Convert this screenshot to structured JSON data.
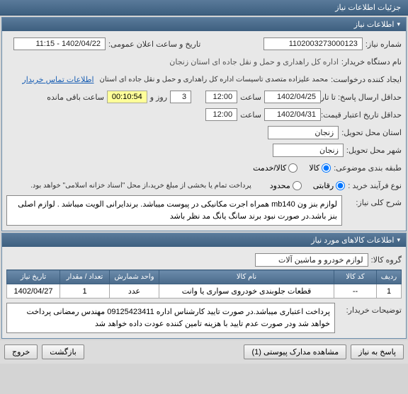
{
  "tabs": {
    "details": "جزئیات اطلاعات نیاز"
  },
  "section1": {
    "title": "اطلاعات نیاز",
    "need_no_label": "شماره نیاز:",
    "need_no": "1102003273000123",
    "pub_date_label": "تاریخ و ساعت اعلان عمومی:",
    "pub_date": "1402/04/22 - 11:15",
    "buyer_label": "نام دستگاه خریدار:",
    "buyer": "اداره کل راهداری و حمل و نقل جاده ای استان زنجان",
    "requester_label": "ایجاد کننده درخواست:",
    "requester": "محمد علیزاده متصدی تاسیسات اداره کل راهداری و حمل و نقل جاده ای استان",
    "contact_link": "اطلاعات تماس خریدار",
    "deadline_label": "حداقل ارسال پاسخ: تا تاریخ:",
    "deadline_date": "1402/04/25",
    "time_label": "ساعت",
    "deadline_time": "12:00",
    "days_label": "روز و",
    "days": "3",
    "countdown": "00:10:54",
    "remain": "ساعت باقی مانده",
    "validity_label": "حداقل تاریخ اعتبار قیمت:تا تاریخ:",
    "validity_date": "1402/04/31",
    "validity_time": "12:00",
    "region_label": "استان محل تحویل:",
    "region": "زنجان",
    "city_label": "شهر محل تحویل:",
    "city": "زنجان",
    "topic_label": "طبقه بندی موضوعی:",
    "cat_goods": "کالا",
    "cat_service": "کالا/خدمت",
    "purchase_label": "نوع فرآیند خرید :",
    "opt_open": "رقابتی",
    "opt_limited": "محدود",
    "treasury_note": "پرداخت تمام یا بخشی از مبلغ خرید،از محل \"اسناد خزانه اسلامی\" خواهد بود.",
    "desc_label": "شرح کلی نیاز:",
    "desc": "لوازم بنز ون mb140 همراه اجرت مکانیکی در پیوست میباشد. برندایرانی الویت میباشد . لوازم اصلی بنز باشد.در صورت نبود برند سانگ یانگ مد نظر باشد"
  },
  "section2": {
    "title": "اطلاعات کالاهای مورد نیاز",
    "group_label": "گروه کالا:",
    "group": "لوازم خودرو و ماشین آلات",
    "cols": {
      "row": "ردیف",
      "code": "کد کالا",
      "name": "نام کالا",
      "unit": "واحد شمارش",
      "qty": "تعداد / مقدار",
      "date": "تاریخ نیاز"
    },
    "rows": [
      {
        "n": "1",
        "code": "--",
        "name": "قطعات جلوبندی خودروی سواری یا وانت",
        "unit": "عدد",
        "qty": "1",
        "date": "1402/04/27"
      }
    ],
    "notes_label": "توضیحات خریدار:",
    "notes": "پرداخت اعتباری میباشد.در صورت تایید کارشناس اداره 09125423411 مهندس رمضانی پرداخت خواهد شد ودر صورت عدم تایید با هزینه تامین کننده عودت داده خواهد شد"
  },
  "buttons": {
    "respond": "پاسخ به نیاز",
    "attachments": "مشاهده مدارک پیوستی (1)",
    "back": "بازگشت",
    "exit": "خروج"
  }
}
